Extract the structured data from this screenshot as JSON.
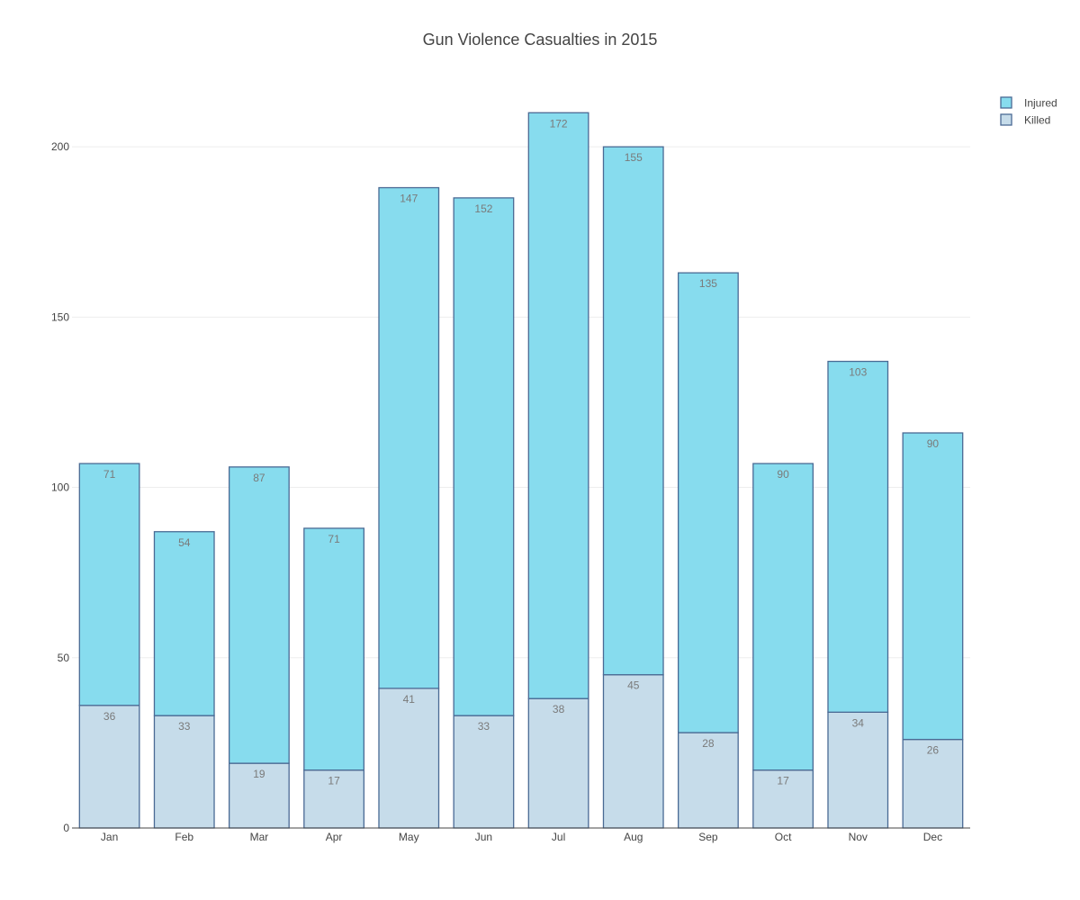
{
  "chart_data": {
    "type": "bar",
    "stacked": true,
    "title": "Gun Violence Casualties in 2015",
    "xlabel": "",
    "ylabel": "",
    "categories": [
      "Jan",
      "Feb",
      "Mar",
      "Apr",
      "May",
      "Jun",
      "Jul",
      "Aug",
      "Sep",
      "Oct",
      "Nov",
      "Dec"
    ],
    "series": [
      {
        "name": "Killed",
        "values": [
          36,
          33,
          19,
          17,
          41,
          33,
          38,
          45,
          28,
          17,
          34,
          26
        ]
      },
      {
        "name": "Injured",
        "values": [
          71,
          54,
          87,
          71,
          147,
          152,
          172,
          155,
          135,
          90,
          103,
          90
        ]
      }
    ],
    "ylim": [
      0,
      218
    ],
    "yticks": [
      0,
      50,
      100,
      150,
      200
    ],
    "grid": true,
    "legend": {
      "position": "top-right",
      "order": [
        "Injured",
        "Killed"
      ]
    },
    "colors": {
      "Injured": "#87dcee",
      "Killed": "#c6dcea",
      "bar_outline": "#4a6a94",
      "grid": "#eeeeee",
      "axis": "#444444"
    }
  }
}
